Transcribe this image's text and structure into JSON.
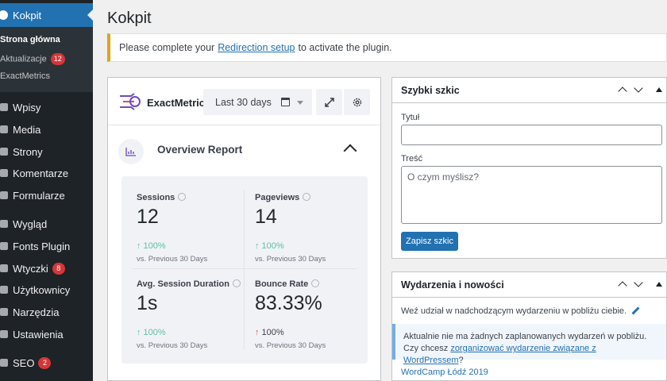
{
  "sidebar": {
    "active": "Kokpit",
    "submenu": {
      "home": "Strona główna",
      "updates": "Aktualizacje",
      "updates_badge": "12",
      "exactmetrics": "ExactMetrics"
    },
    "items": [
      {
        "label": "Wpisy"
      },
      {
        "label": "Media"
      },
      {
        "label": "Strony"
      },
      {
        "label": "Komentarze"
      },
      {
        "label": "Formularze"
      },
      {
        "label": "Wygląd"
      },
      {
        "label": "Fonts Plugin"
      },
      {
        "label": "Wtyczki",
        "badge": "8"
      },
      {
        "label": "Użytkownicy"
      },
      {
        "label": "Narzędzia"
      },
      {
        "label": "Ustawienia"
      },
      {
        "label": "SEO",
        "badge": "2"
      }
    ]
  },
  "page": {
    "title": "Kokpit",
    "notice_before": "Please complete your",
    "notice_link": "Redirection setup",
    "notice_after": "to activate the plugin."
  },
  "exactmetrics": {
    "brand": "ExactMetrics",
    "date_range": "Last 30 days",
    "report_title": "Overview Report",
    "stats": [
      {
        "label": "Sessions",
        "value": "12",
        "change": "100%",
        "direction": "up",
        "compare": "vs. Previous 30 Days"
      },
      {
        "label": "Pageviews",
        "value": "14",
        "change": "100%",
        "direction": "up",
        "compare": "vs. Previous 30 Days"
      },
      {
        "label": "Avg. Session Duration",
        "value": "1s",
        "change": "100%",
        "direction": "up",
        "compare": "vs. Previous 30 Days"
      },
      {
        "label": "Bounce Rate",
        "value": "83.33%",
        "change": "100%",
        "direction": "down",
        "compare": "vs. Previous 30 Days"
      }
    ],
    "colors": {
      "up": "#5cc0a5",
      "down_arrow": "#eb5757",
      "accent": "#6f4bbb"
    }
  },
  "quick_draft": {
    "title": "Szybki szkic",
    "title_label": "Tytuł",
    "content_label": "Treść",
    "content_placeholder": "O czym myślisz?",
    "save_button": "Zapisz szkic"
  },
  "events": {
    "title": "Wydarzenia i nowości",
    "intro": "Weź udział w nadchodzącym wydarzeniu w pobliżu ciebie.",
    "note_before": "Aktualnie nie ma żadnych zaplanowanych wydarzeń w pobliżu. Czy chcesz",
    "note_link": "zorganizować wydarzenie związane z WordPressem",
    "note_after": "?",
    "first_link": "WordCamp Łódź 2019"
  }
}
